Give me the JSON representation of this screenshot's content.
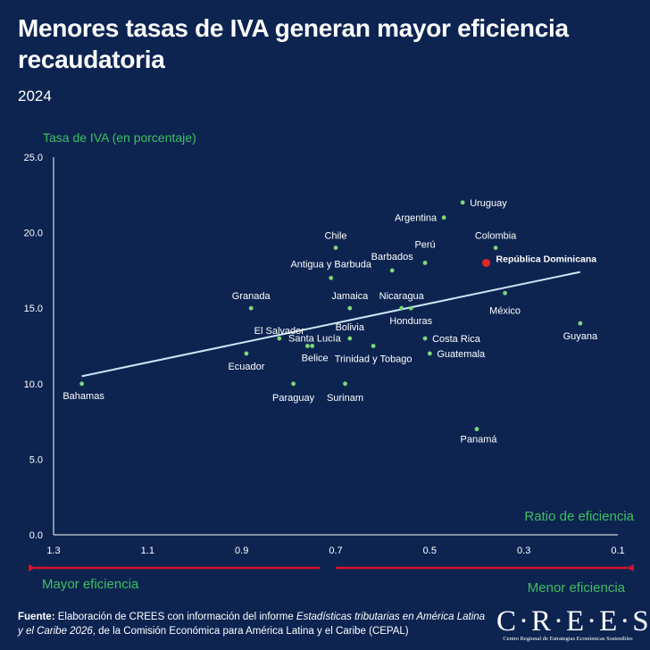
{
  "header": {
    "title": "Menores tasas de IVA generan mayor eficiencia recaudatoria",
    "year": "2024"
  },
  "labels": {
    "mayor": "Mayor eficiencia",
    "menor": "Menor eficiencia"
  },
  "source": {
    "label": "Fuente:",
    "text1": " Elaboración de CREES con información del informe ",
    "italic": "Estadísticas tributarias en América Latina y el Caribe 2026",
    "text2": ", de la Comisión Económica para América Latina y el Caribe (CEPAL)"
  },
  "logo": {
    "word": "C·R·E·E·S",
    "subtitle": "Centro Regional de Estrategias Económicas Sostenibles"
  },
  "colors": {
    "background": "#0d2451",
    "point": "#7dd87a",
    "highlight": "#e52626",
    "trendline": "#cfe4f5",
    "arrow": "#d6122b",
    "accent_text": "#3fbf5f"
  },
  "chart_data": {
    "type": "scatter",
    "xlabel": "Ratio de eficiencia",
    "ylabel": "Tasa de IVA  (en porcentaje)",
    "xlim": [
      1.3,
      0.1
    ],
    "ylim": [
      0,
      25
    ],
    "x_reversed": true,
    "x_ticks": [
      "1.3",
      "1.1",
      "0.9",
      "0.7",
      "0.5",
      "0.3",
      "0.1"
    ],
    "y_ticks": [
      "0.0",
      "5.0",
      "10.0",
      "15.0",
      "20.0",
      "25.0"
    ],
    "grid": false,
    "trendline": {
      "x": [
        1.24,
        0.18
      ],
      "y": [
        10.5,
        17.4
      ]
    },
    "points": [
      {
        "name": "Uruguay",
        "x": 0.43,
        "y": 22
      },
      {
        "name": "Argentina",
        "x": 0.47,
        "y": 21
      },
      {
        "name": "Colombia",
        "x": 0.36,
        "y": 19
      },
      {
        "name": "Chile",
        "x": 0.7,
        "y": 19
      },
      {
        "name": "Perú",
        "x": 0.51,
        "y": 18
      },
      {
        "name": "República Dominicana",
        "x": 0.38,
        "y": 18,
        "highlight": true
      },
      {
        "name": "Barbados",
        "x": 0.58,
        "y": 17.5
      },
      {
        "name": "Antigua y Barbuda",
        "x": 0.71,
        "y": 17
      },
      {
        "name": "México",
        "x": 0.34,
        "y": 16
      },
      {
        "name": "Granada",
        "x": 0.88,
        "y": 15
      },
      {
        "name": "Jamaica",
        "x": 0.67,
        "y": 15
      },
      {
        "name": "Nicaragua",
        "x": 0.56,
        "y": 15
      },
      {
        "name": "Honduras",
        "x": 0.54,
        "y": 15
      },
      {
        "name": "Guyana",
        "x": 0.18,
        "y": 14
      },
      {
        "name": "El Salvador",
        "x": 0.82,
        "y": 13
      },
      {
        "name": "Bolivia",
        "x": 0.67,
        "y": 13
      },
      {
        "name": "Costa Rica",
        "x": 0.51,
        "y": 13
      },
      {
        "name": "Santa Lucía",
        "x": 0.76,
        "y": 12.5
      },
      {
        "name": "Belice",
        "x": 0.75,
        "y": 12.5
      },
      {
        "name": "Trinidad y Tobago",
        "x": 0.62,
        "y": 12.5
      },
      {
        "name": "Ecuador",
        "x": 0.89,
        "y": 12
      },
      {
        "name": "Guatemala",
        "x": 0.5,
        "y": 12
      },
      {
        "name": "Bahamas",
        "x": 1.24,
        "y": 10
      },
      {
        "name": "Paraguay",
        "x": 0.79,
        "y": 10
      },
      {
        "name": "Surinam",
        "x": 0.68,
        "y": 10
      },
      {
        "name": "Panamá",
        "x": 0.4,
        "y": 7
      }
    ]
  }
}
